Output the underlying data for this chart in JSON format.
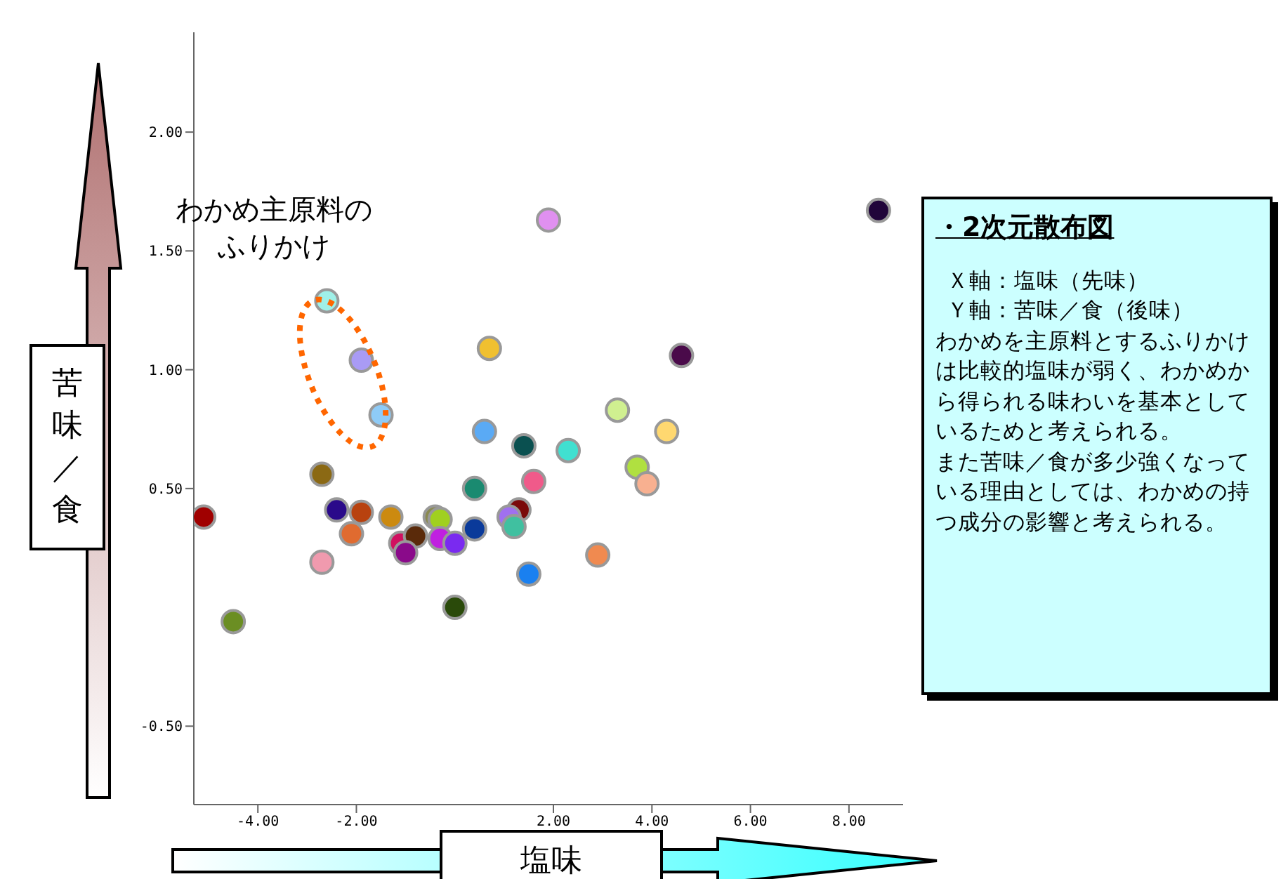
{
  "chart_data": {
    "type": "scatter",
    "title": "・2次元散布図",
    "xlabel": "塩味",
    "ylabel": "苦味／食",
    "x": [
      -5.1,
      -4.5,
      -2.6,
      -1.9,
      -1.5,
      -2.7,
      -2.4,
      -1.9,
      -1.3,
      -2.1,
      -2.7,
      -1.1,
      -0.8,
      -1.0,
      -0.4,
      -0.3,
      -0.3,
      0.0,
      0.0,
      0.4,
      0.4,
      0.6,
      0.7,
      1.4,
      1.3,
      1.1,
      1.2,
      1.6,
      1.5,
      1.9,
      2.3,
      2.9,
      3.3,
      3.7,
      3.9,
      4.3,
      4.6,
      8.6
    ],
    "values": [
      0.38,
      -0.06,
      1.29,
      1.04,
      0.81,
      0.56,
      0.41,
      0.4,
      0.38,
      0.31,
      0.19,
      0.27,
      0.3,
      0.23,
      0.38,
      0.37,
      0.29,
      0.27,
      0.0,
      0.33,
      0.5,
      0.74,
      1.09,
      0.68,
      0.41,
      0.38,
      0.34,
      0.53,
      0.14,
      1.63,
      0.66,
      0.22,
      0.83,
      0.59,
      0.52,
      0.74,
      1.06,
      1.67
    ],
    "colors": [
      "#a00000",
      "#6b8e23",
      "#9ff0e8",
      "#a99bf5",
      "#8ecbf7",
      "#8b6914",
      "#2a0a8a",
      "#b8420f",
      "#cc8a10",
      "#e06b30",
      "#f09aae",
      "#d01060",
      "#5a2a0a",
      "#8a0a8a",
      "#8a8a50",
      "#a0d020",
      "#c020e0",
      "#7a2af0",
      "#2a4a0a",
      "#0a3a9a",
      "#1a8a70",
      "#5aaaf5",
      "#f0c030",
      "#0a5050",
      "#7a0a0a",
      "#a070f0",
      "#40c0a0",
      "#f05a8a",
      "#1a80f0",
      "#e090f0",
      "#40e0d0",
      "#f08a50",
      "#d0f090",
      "#b0e040",
      "#f8b090",
      "#ffd870",
      "#4a0a4a",
      "#20053a"
    ],
    "xlim": [
      -5.3,
      9.1
    ],
    "ylim": [
      -0.83,
      2.42
    ],
    "xticks": [
      {
        "value": -4,
        "label": "-4.00"
      },
      {
        "value": -2,
        "label": "-2.00"
      },
      {
        "value": 2,
        "label": "2.00"
      },
      {
        "value": 4,
        "label": "4.00"
      },
      {
        "value": 6,
        "label": "6.00"
      },
      {
        "value": 8,
        "label": "8.00"
      }
    ],
    "yticks": [
      {
        "value": -0.5,
        "label": "-0.50"
      },
      {
        "value": 0.5,
        "label": "0.50"
      },
      {
        "value": 1,
        "label": "1.00"
      },
      {
        "value": 1.5,
        "label": "1.50"
      },
      {
        "value": 2,
        "label": "2.00"
      }
    ],
    "marker": "circle",
    "grid": false,
    "legend": false,
    "annotations": [
      "わかめ主原料のふりかけ",
      "Ｘ軸：塩味（先味）",
      "Ｙ軸：苦味／食（後味）",
      "わかめを主原料とするふりかけは比較的塩味が弱く、わかめから得られる味わいを基本としているためと考えられる。",
      "また苦味／食が多少強くなっている理由としては、わかめの持つ成分の影響と考えられる。"
    ]
  }
}
